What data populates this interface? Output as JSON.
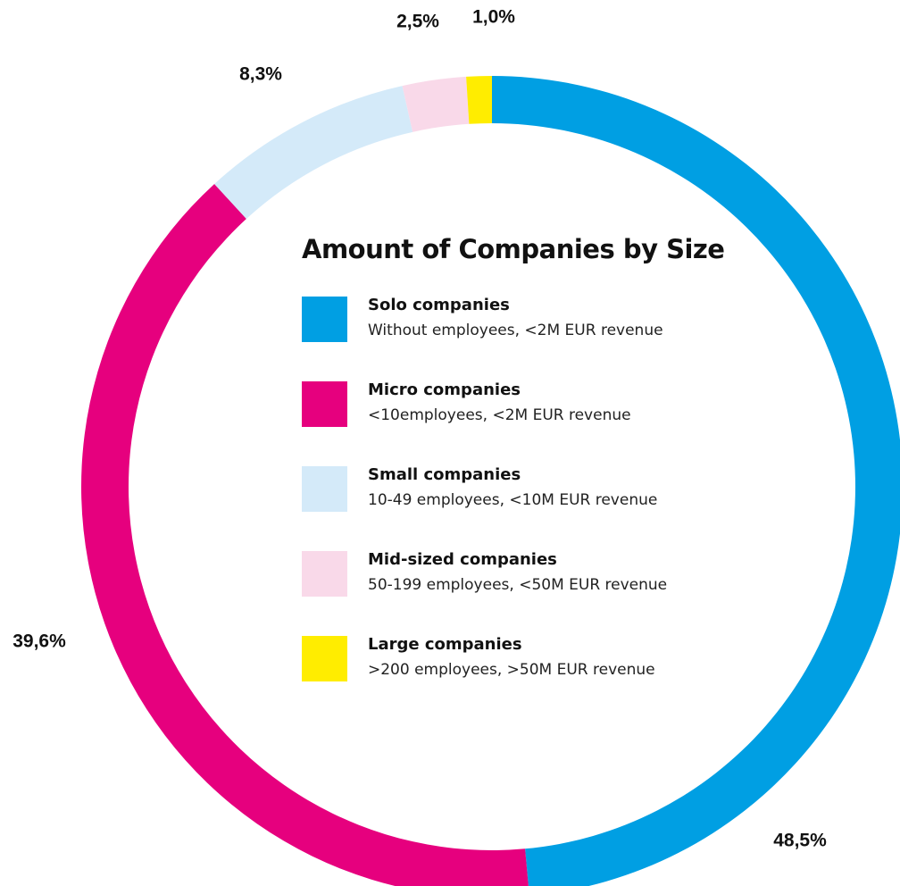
{
  "chart_data": {
    "type": "pie",
    "variant": "donut",
    "title": "Amount of Companies by Size",
    "categories": [
      "Solo companies",
      "Micro companies",
      "Small companies",
      "Mid-sized companies",
      "Large companies"
    ],
    "values": [
      48.5,
      39.6,
      8.3,
      2.5,
      1.0
    ],
    "value_labels": [
      "48,5%",
      "39,6%",
      "8,3%",
      "2,5%",
      "1,0%"
    ],
    "colors": [
      "#009fe3",
      "#e6007e",
      "#d4eaf9",
      "#f9d9e9",
      "#ffed00"
    ],
    "start": "12 o'clock",
    "direction": "clockwise",
    "legend": [
      {
        "label": "Solo companies",
        "description": "Without employees, <2M EUR revenue",
        "color": "#009fe3"
      },
      {
        "label": "Micro companies",
        "description": "<10employees, <2M EUR revenue",
        "color": "#e6007e"
      },
      {
        "label": "Small companies",
        "description": "10-49 employees, <10M EUR revenue",
        "color": "#d4eaf9"
      },
      {
        "label": "Mid-sized companies",
        "description": "50-199 employees, <50M EUR revenue",
        "color": "#f9d9e9"
      },
      {
        "label": "Large companies",
        "description": ">200 employees, >50M EUR revenue",
        "color": "#ffed00"
      }
    ],
    "legend_placement": "center"
  }
}
